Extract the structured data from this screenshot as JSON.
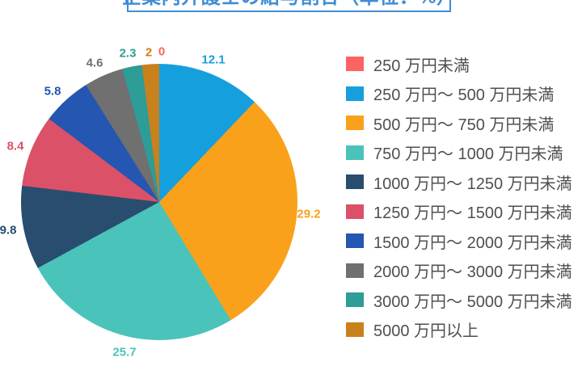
{
  "title": {
    "text": "企業内弁護士の給与割合（単位：%）"
  },
  "colors": {
    "title_blue": "#3F8DD5",
    "legend_text": "#4F4F4F",
    "background": "#FFFFFF"
  },
  "chart_data": {
    "type": "pie",
    "title": "企業内弁護士の給与割合（単位：%）",
    "unit": "%",
    "start_angle_deg": 0,
    "direction": "clockwise",
    "legend_position": "right",
    "slices": [
      {
        "label": "250 万円未満",
        "value": 0,
        "display": "0",
        "color": "#FB6462"
      },
      {
        "label": "250 万円～ 500 万円未満",
        "value": 12.1,
        "display": "12.1",
        "color": "#169FDD"
      },
      {
        "label": "500 万円～ 750 万円未満",
        "value": 29.2,
        "display": "29.2",
        "color": "#F9A11B"
      },
      {
        "label": "750 万円～ 1000 万円未満",
        "value": 25.7,
        "display": "25.7",
        "color": "#4AC3BA"
      },
      {
        "label": "1000 万円～ 1250 万円未満",
        "value": 9.8,
        "display": "9.8",
        "color": "#294D6F"
      },
      {
        "label": "1250 万円～ 1500 万円未満",
        "value": 8.4,
        "display": "8.4",
        "color": "#DB5168"
      },
      {
        "label": "1500 万円～ 2000 万円未満",
        "value": 5.8,
        "display": "5.8",
        "color": "#2556B2"
      },
      {
        "label": "2000 万円～ 3000 万円未満",
        "value": 4.6,
        "display": "4.6",
        "color": "#707070"
      },
      {
        "label": "3000 万円～ 5000 万円未満",
        "value": 2.3,
        "display": "2.3",
        "color": "#2E9C97"
      },
      {
        "label": "5000 万円以上",
        "value": 2,
        "display": "2",
        "color": "#C8811C"
      }
    ]
  }
}
